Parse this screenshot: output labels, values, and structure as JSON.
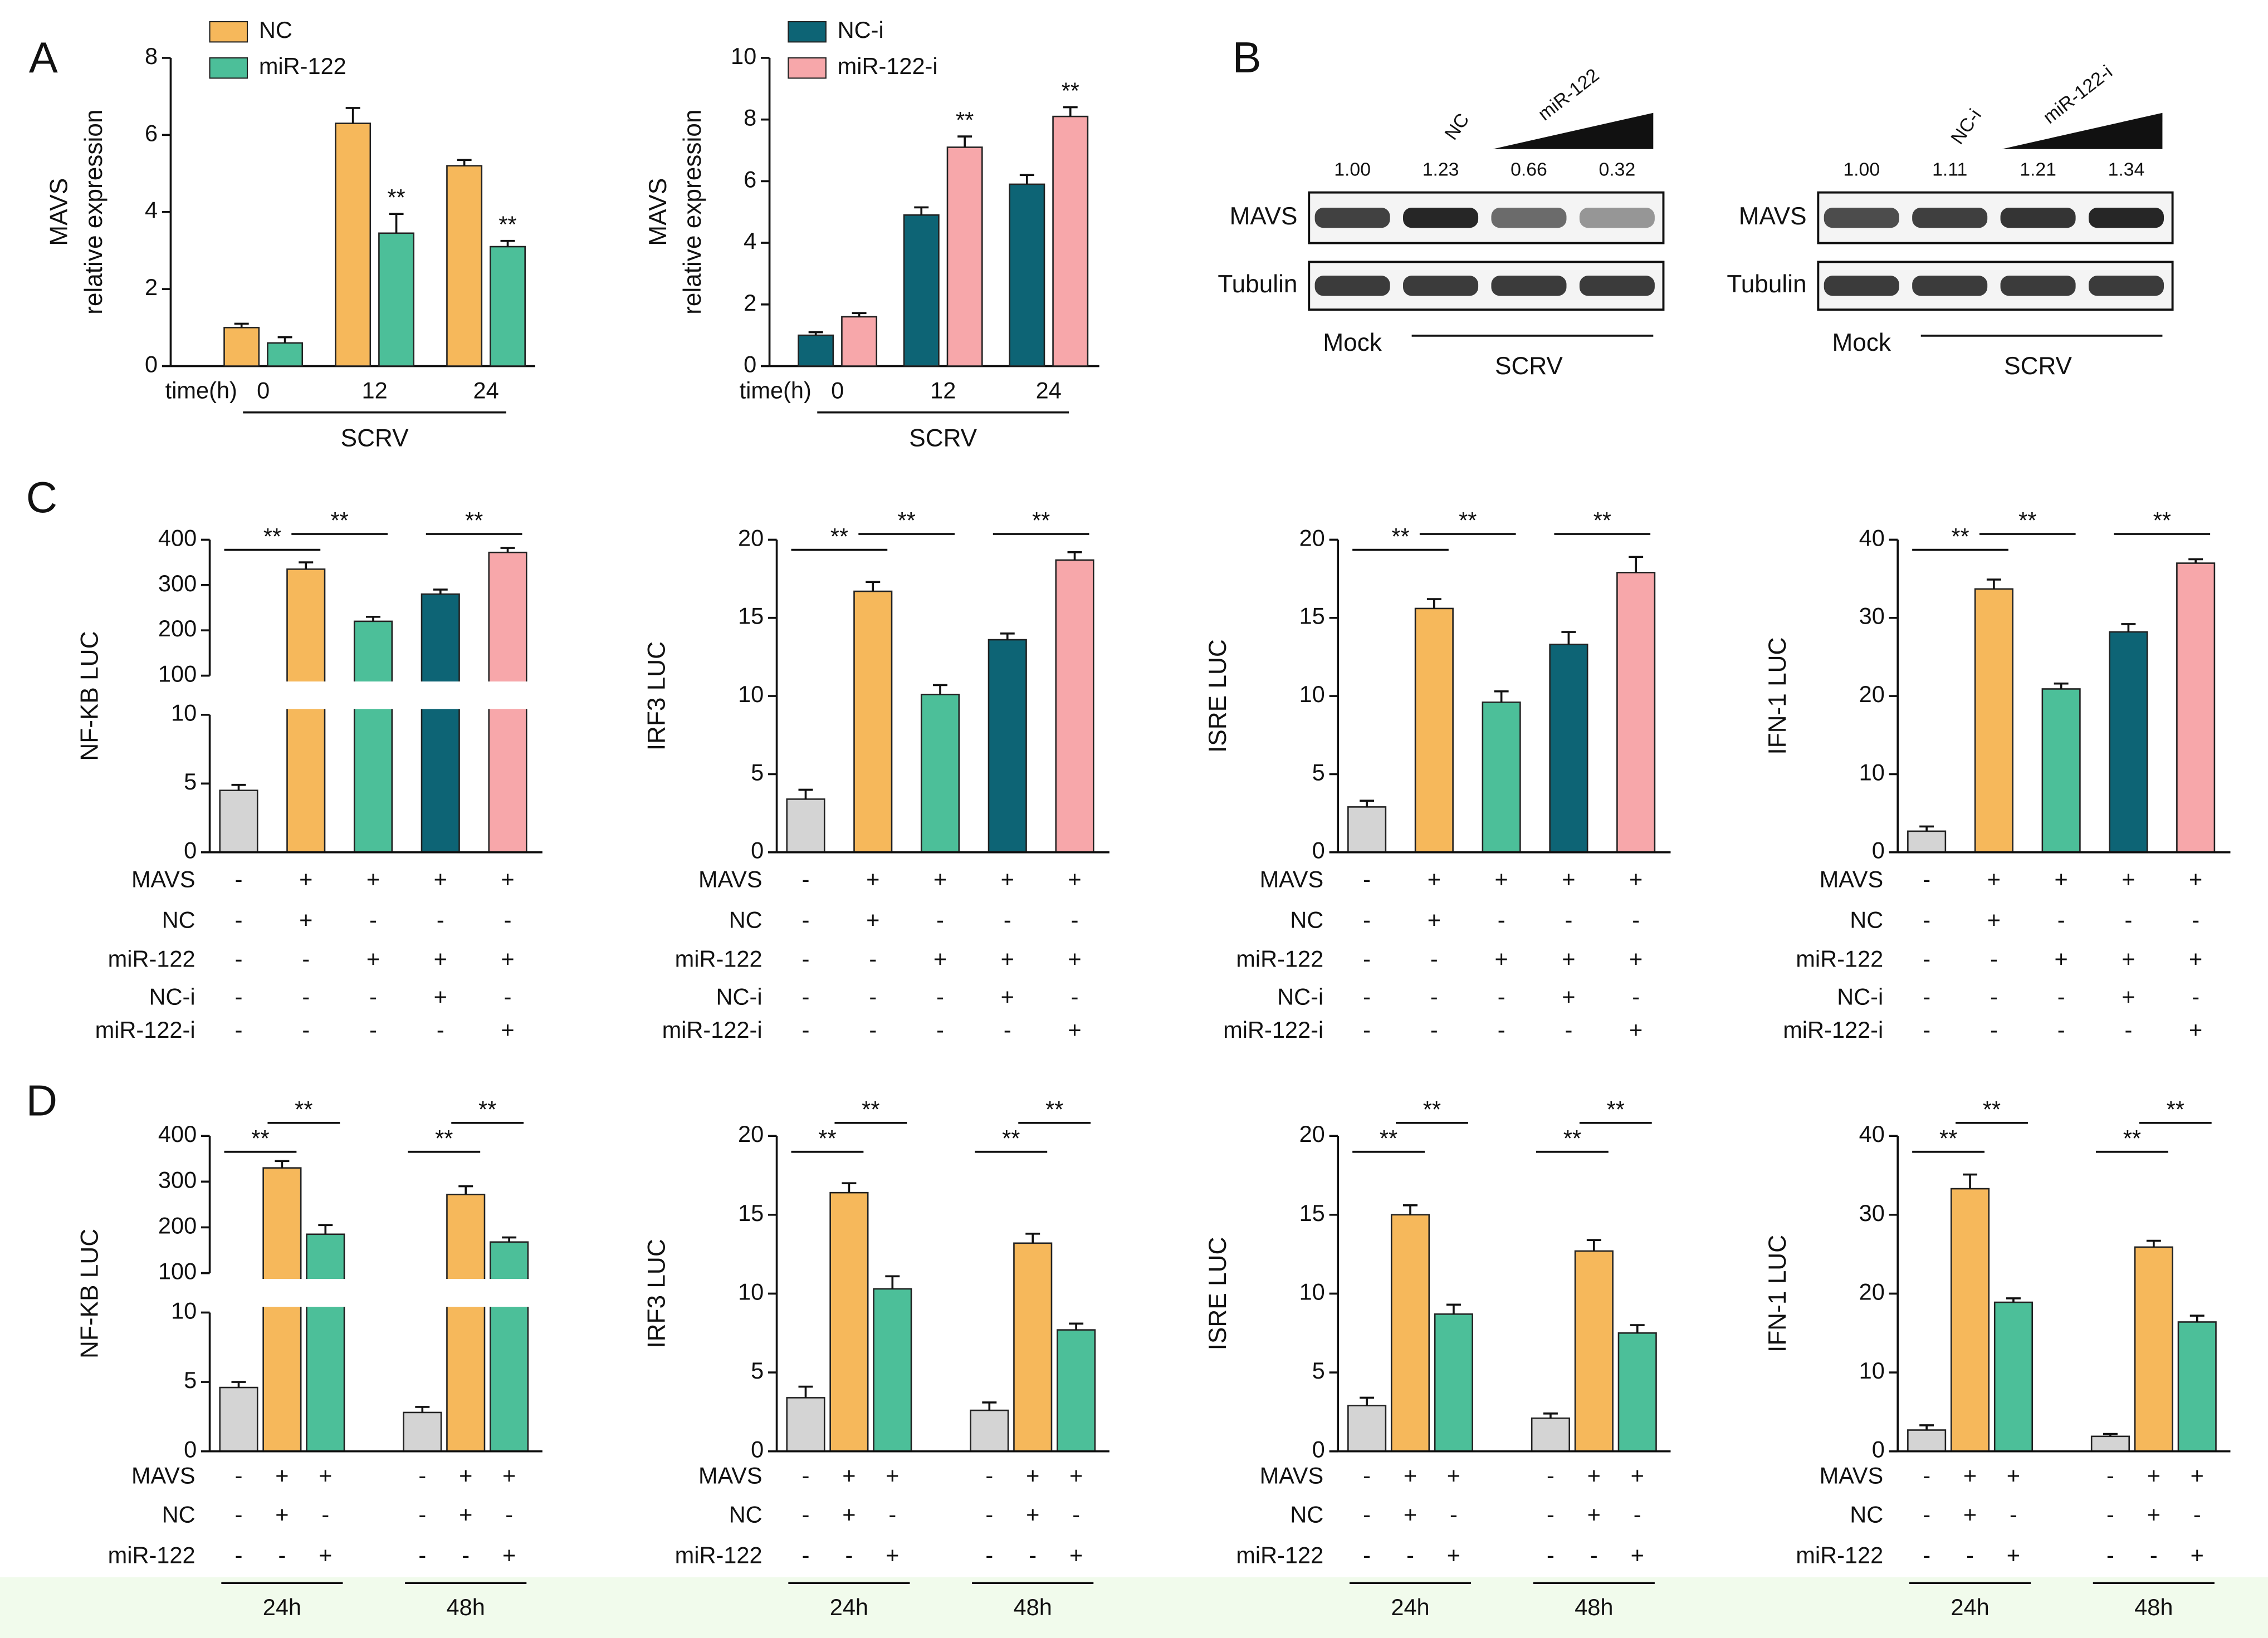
{
  "chart_data": [
    {
      "type": "grouped_bar",
      "panel": "A",
      "ylabel": [
        "MAVS",
        "relative expression"
      ],
      "xlabel": "time(h)",
      "categories": [
        "0",
        "12",
        "24"
      ],
      "group_label": "SCRV",
      "legend": "upper left",
      "ylim": [
        0,
        8
      ],
      "yticks": [
        0,
        2,
        4,
        6,
        8
      ],
      "series": [
        {
          "name": "NC",
          "color": "#f6b85b",
          "values": [
            1.0,
            6.3,
            5.2
          ],
          "errors": [
            0.1,
            0.4,
            0.15
          ]
        },
        {
          "name": "miR-122",
          "color": "#4cbf99",
          "values": [
            0.6,
            3.45,
            3.1
          ],
          "errors": [
            0.15,
            0.5,
            0.15
          ],
          "labels": [
            null,
            "**",
            "**"
          ]
        }
      ]
    },
    {
      "type": "grouped_bar",
      "ylabel": [
        "MAVS",
        "relative expression"
      ],
      "xlabel": "time(h)",
      "categories": [
        "0",
        "12",
        "24"
      ],
      "group_label": "SCRV",
      "legend": "upper left",
      "ylim": [
        0,
        10
      ],
      "yticks": [
        0,
        2,
        4,
        6,
        8,
        10
      ],
      "series": [
        {
          "name": "NC-i",
          "color": "#0d6475",
          "values": [
            1.0,
            4.9,
            5.9
          ],
          "errors": [
            0.1,
            0.25,
            0.3
          ]
        },
        {
          "name": "miR-122-i",
          "color": "#f7a7aa",
          "values": [
            1.6,
            7.1,
            8.1
          ],
          "errors": [
            0.12,
            0.35,
            0.3
          ],
          "labels": [
            null,
            "**",
            "**"
          ]
        }
      ]
    },
    {
      "type": "bar",
      "panel": "C",
      "ylabel": "NF-KB LUC",
      "values": [
        4.5,
        335,
        220,
        280,
        372
      ],
      "errors": [
        0.4,
        15,
        10,
        10,
        10
      ],
      "colors": [
        "#d4d4d4",
        "#f6b85b",
        "#4cbf99",
        "#0d6475",
        "#f7a7aa"
      ],
      "ylim": [
        0,
        10
      ],
      "yticks": [
        0,
        5,
        10
      ],
      "break": {
        "ylim": [
          100,
          400
        ],
        "yticks": [
          100,
          200,
          300,
          400
        ]
      },
      "brackets": [
        {
          "from": 0,
          "to": 1,
          "label": "**"
        },
        {
          "from": 1,
          "to": 2,
          "label": "**"
        },
        {
          "from": 3,
          "to": 4,
          "label": "**"
        }
      ],
      "conditions": [
        {
          "name": "MAVS",
          "signs": [
            "-",
            "+",
            "+",
            "+",
            "+"
          ]
        },
        {
          "name": "NC",
          "signs": [
            "-",
            "+",
            "-",
            "-",
            "-"
          ]
        },
        {
          "name": "miR-122",
          "signs": [
            "-",
            "-",
            "+",
            "+",
            "+"
          ]
        },
        {
          "name": "NC-i",
          "signs": [
            "-",
            "-",
            "-",
            "+",
            "-"
          ]
        },
        {
          "name": "miR-122-i",
          "signs": [
            "-",
            "-",
            "-",
            "-",
            "+"
          ]
        }
      ]
    },
    {
      "type": "bar",
      "ylabel": "IRF3 LUC",
      "values": [
        3.4,
        16.7,
        10.1,
        13.6,
        18.7
      ],
      "errors": [
        0.6,
        0.6,
        0.6,
        0.4,
        0.5
      ],
      "colors": [
        "#d4d4d4",
        "#f6b85b",
        "#4cbf99",
        "#0d6475",
        "#f7a7aa"
      ],
      "ylim": [
        0,
        20
      ],
      "yticks": [
        0,
        5,
        10,
        15,
        20
      ],
      "brackets": [
        {
          "from": 0,
          "to": 1,
          "label": "**"
        },
        {
          "from": 1,
          "to": 2,
          "label": "**"
        },
        {
          "from": 3,
          "to": 4,
          "label": "**"
        }
      ],
      "conditions": [
        {
          "name": "MAVS",
          "signs": [
            "-",
            "+",
            "+",
            "+",
            "+"
          ]
        },
        {
          "name": "NC",
          "signs": [
            "-",
            "+",
            "-",
            "-",
            "-"
          ]
        },
        {
          "name": "miR-122",
          "signs": [
            "-",
            "-",
            "+",
            "+",
            "+"
          ]
        },
        {
          "name": "NC-i",
          "signs": [
            "-",
            "-",
            "-",
            "+",
            "-"
          ]
        },
        {
          "name": "miR-122-i",
          "signs": [
            "-",
            "-",
            "-",
            "-",
            "+"
          ]
        }
      ]
    },
    {
      "type": "bar",
      "ylabel": "ISRE LUC",
      "values": [
        2.9,
        15.6,
        9.6,
        13.3,
        17.9
      ],
      "errors": [
        0.4,
        0.6,
        0.7,
        0.8,
        1.0
      ],
      "colors": [
        "#d4d4d4",
        "#f6b85b",
        "#4cbf99",
        "#0d6475",
        "#f7a7aa"
      ],
      "ylim": [
        0,
        20
      ],
      "yticks": [
        0,
        5,
        10,
        15,
        20
      ],
      "brackets": [
        {
          "from": 0,
          "to": 1,
          "label": "**"
        },
        {
          "from": 1,
          "to": 2,
          "label": "**"
        },
        {
          "from": 3,
          "to": 4,
          "label": "**"
        }
      ],
      "conditions": [
        {
          "name": "MAVS",
          "signs": [
            "-",
            "+",
            "+",
            "+",
            "+"
          ]
        },
        {
          "name": "NC",
          "signs": [
            "-",
            "+",
            "-",
            "-",
            "-"
          ]
        },
        {
          "name": "miR-122",
          "signs": [
            "-",
            "-",
            "+",
            "+",
            "+"
          ]
        },
        {
          "name": "NC-i",
          "signs": [
            "-",
            "-",
            "-",
            "+",
            "-"
          ]
        },
        {
          "name": "miR-122-i",
          "signs": [
            "-",
            "-",
            "-",
            "-",
            "+"
          ]
        }
      ]
    },
    {
      "type": "bar",
      "ylabel": "IFN-1 LUC",
      "values": [
        2.7,
        33.7,
        20.9,
        28.2,
        37.0
      ],
      "errors": [
        0.6,
        1.2,
        0.7,
        1.0,
        0.5
      ],
      "colors": [
        "#d4d4d4",
        "#f6b85b",
        "#4cbf99",
        "#0d6475",
        "#f7a7aa"
      ],
      "ylim": [
        0,
        40
      ],
      "yticks": [
        0,
        10,
        20,
        30,
        40
      ],
      "brackets": [
        {
          "from": 0,
          "to": 1,
          "label": "**"
        },
        {
          "from": 1,
          "to": 2,
          "label": "**"
        },
        {
          "from": 3,
          "to": 4,
          "label": "**"
        }
      ],
      "conditions": [
        {
          "name": "MAVS",
          "signs": [
            "-",
            "+",
            "+",
            "+",
            "+"
          ]
        },
        {
          "name": "NC",
          "signs": [
            "-",
            "+",
            "-",
            "-",
            "-"
          ]
        },
        {
          "name": "miR-122",
          "signs": [
            "-",
            "-",
            "+",
            "+",
            "+"
          ]
        },
        {
          "name": "NC-i",
          "signs": [
            "-",
            "-",
            "-",
            "+",
            "-"
          ]
        },
        {
          "name": "miR-122-i",
          "signs": [
            "-",
            "-",
            "-",
            "-",
            "+"
          ]
        }
      ]
    },
    {
      "type": "bar",
      "panel": "D",
      "ylabel": "NF-KB LUC",
      "values": [
        4.6,
        330,
        185,
        2.8,
        272,
        168
      ],
      "errors": [
        0.4,
        15,
        20,
        0.4,
        18,
        10
      ],
      "colors": [
        "#d4d4d4",
        "#f6b85b",
        "#4cbf99",
        "#d4d4d4",
        "#f6b85b",
        "#4cbf99"
      ],
      "ylim": [
        0,
        10
      ],
      "yticks": [
        0,
        5,
        10
      ],
      "break": {
        "ylim": [
          100,
          400
        ],
        "yticks": [
          100,
          200,
          300,
          400
        ]
      },
      "groups": [
        "24h",
        "48h"
      ],
      "brackets": [
        {
          "from": 0,
          "to": 1,
          "label": "**"
        },
        {
          "from": 1,
          "to": 2,
          "label": "**"
        },
        {
          "from": 3,
          "to": 4,
          "label": "**"
        },
        {
          "from": 4,
          "to": 5,
          "label": "**"
        }
      ],
      "conditions": [
        {
          "name": "MAVS",
          "signs": [
            "-",
            "+",
            "+",
            "-",
            "+",
            "+"
          ]
        },
        {
          "name": "NC",
          "signs": [
            "-",
            "+",
            "-",
            "-",
            "+",
            "-"
          ]
        },
        {
          "name": "miR-122",
          "signs": [
            "-",
            "-",
            "+",
            "-",
            "-",
            "+"
          ]
        }
      ]
    },
    {
      "type": "bar",
      "ylabel": "IRF3 LUC",
      "values": [
        3.4,
        16.4,
        10.3,
        2.6,
        13.2,
        7.7
      ],
      "errors": [
        0.7,
        0.6,
        0.8,
        0.5,
        0.6,
        0.4
      ],
      "colors": [
        "#d4d4d4",
        "#f6b85b",
        "#4cbf99",
        "#d4d4d4",
        "#f6b85b",
        "#4cbf99"
      ],
      "ylim": [
        0,
        20
      ],
      "yticks": [
        0,
        5,
        10,
        15,
        20
      ],
      "groups": [
        "24h",
        "48h"
      ],
      "brackets": [
        {
          "from": 0,
          "to": 1,
          "label": "**"
        },
        {
          "from": 1,
          "to": 2,
          "label": "**"
        },
        {
          "from": 3,
          "to": 4,
          "label": "**"
        },
        {
          "from": 4,
          "to": 5,
          "label": "**"
        }
      ],
      "conditions": [
        {
          "name": "MAVS",
          "signs": [
            "-",
            "+",
            "+",
            "-",
            "+",
            "+"
          ]
        },
        {
          "name": "NC",
          "signs": [
            "-",
            "+",
            "-",
            "-",
            "+",
            "-"
          ]
        },
        {
          "name": "miR-122",
          "signs": [
            "-",
            "-",
            "+",
            "-",
            "-",
            "+"
          ]
        }
      ]
    },
    {
      "type": "bar",
      "ylabel": "ISRE LUC",
      "values": [
        2.9,
        15.0,
        8.7,
        2.1,
        12.7,
        7.5
      ],
      "errors": [
        0.5,
        0.6,
        0.6,
        0.3,
        0.7,
        0.5
      ],
      "colors": [
        "#d4d4d4",
        "#f6b85b",
        "#4cbf99",
        "#d4d4d4",
        "#f6b85b",
        "#4cbf99"
      ],
      "ylim": [
        0,
        20
      ],
      "yticks": [
        0,
        5,
        10,
        15,
        20
      ],
      "groups": [
        "24h",
        "48h"
      ],
      "brackets": [
        {
          "from": 0,
          "to": 1,
          "label": "**"
        },
        {
          "from": 1,
          "to": 2,
          "label": "**"
        },
        {
          "from": 3,
          "to": 4,
          "label": "**"
        },
        {
          "from": 4,
          "to": 5,
          "label": "**"
        }
      ],
      "conditions": [
        {
          "name": "MAVS",
          "signs": [
            "-",
            "+",
            "+",
            "-",
            "+",
            "+"
          ]
        },
        {
          "name": "NC",
          "signs": [
            "-",
            "+",
            "-",
            "-",
            "+",
            "-"
          ]
        },
        {
          "name": "miR-122",
          "signs": [
            "-",
            "-",
            "+",
            "-",
            "-",
            "+"
          ]
        }
      ]
    },
    {
      "type": "bar",
      "ylabel": "IFN-1 LUC",
      "values": [
        2.7,
        33.3,
        18.9,
        1.9,
        25.9,
        16.4
      ],
      "errors": [
        0.6,
        1.8,
        0.5,
        0.3,
        0.8,
        0.8
      ],
      "colors": [
        "#d4d4d4",
        "#f6b85b",
        "#4cbf99",
        "#d4d4d4",
        "#f6b85b",
        "#4cbf99"
      ],
      "ylim": [
        0,
        40
      ],
      "yticks": [
        0,
        10,
        20,
        30,
        40
      ],
      "groups": [
        "24h",
        "48h"
      ],
      "brackets": [
        {
          "from": 0,
          "to": 1,
          "label": "**"
        },
        {
          "from": 1,
          "to": 2,
          "label": "**"
        },
        {
          "from": 3,
          "to": 4,
          "label": "**"
        },
        {
          "from": 4,
          "to": 5,
          "label": "**"
        }
      ],
      "conditions": [
        {
          "name": "MAVS",
          "signs": [
            "-",
            "+",
            "+",
            "-",
            "+",
            "+"
          ]
        },
        {
          "name": "NC",
          "signs": [
            "-",
            "+",
            "-",
            "-",
            "+",
            "-"
          ]
        },
        {
          "name": "miR-122",
          "signs": [
            "-",
            "-",
            "+",
            "-",
            "-",
            "+"
          ]
        }
      ]
    }
  ],
  "blots": {
    "panel": "B",
    "items": [
      {
        "quant": [
          "1.00",
          "1.23",
          "0.66",
          "0.32"
        ],
        "control": "NC",
        "treatment": "miR-122",
        "rows": [
          "MAVS",
          "Tubulin"
        ],
        "mock": "Mock",
        "infection": "SCRV"
      },
      {
        "quant": [
          "1.00",
          "1.11",
          "1.21",
          "1.34"
        ],
        "control": "NC-i",
        "treatment": "miR-122-i",
        "rows": [
          "MAVS",
          "Tubulin"
        ],
        "mock": "Mock",
        "infection": "SCRV"
      }
    ]
  }
}
